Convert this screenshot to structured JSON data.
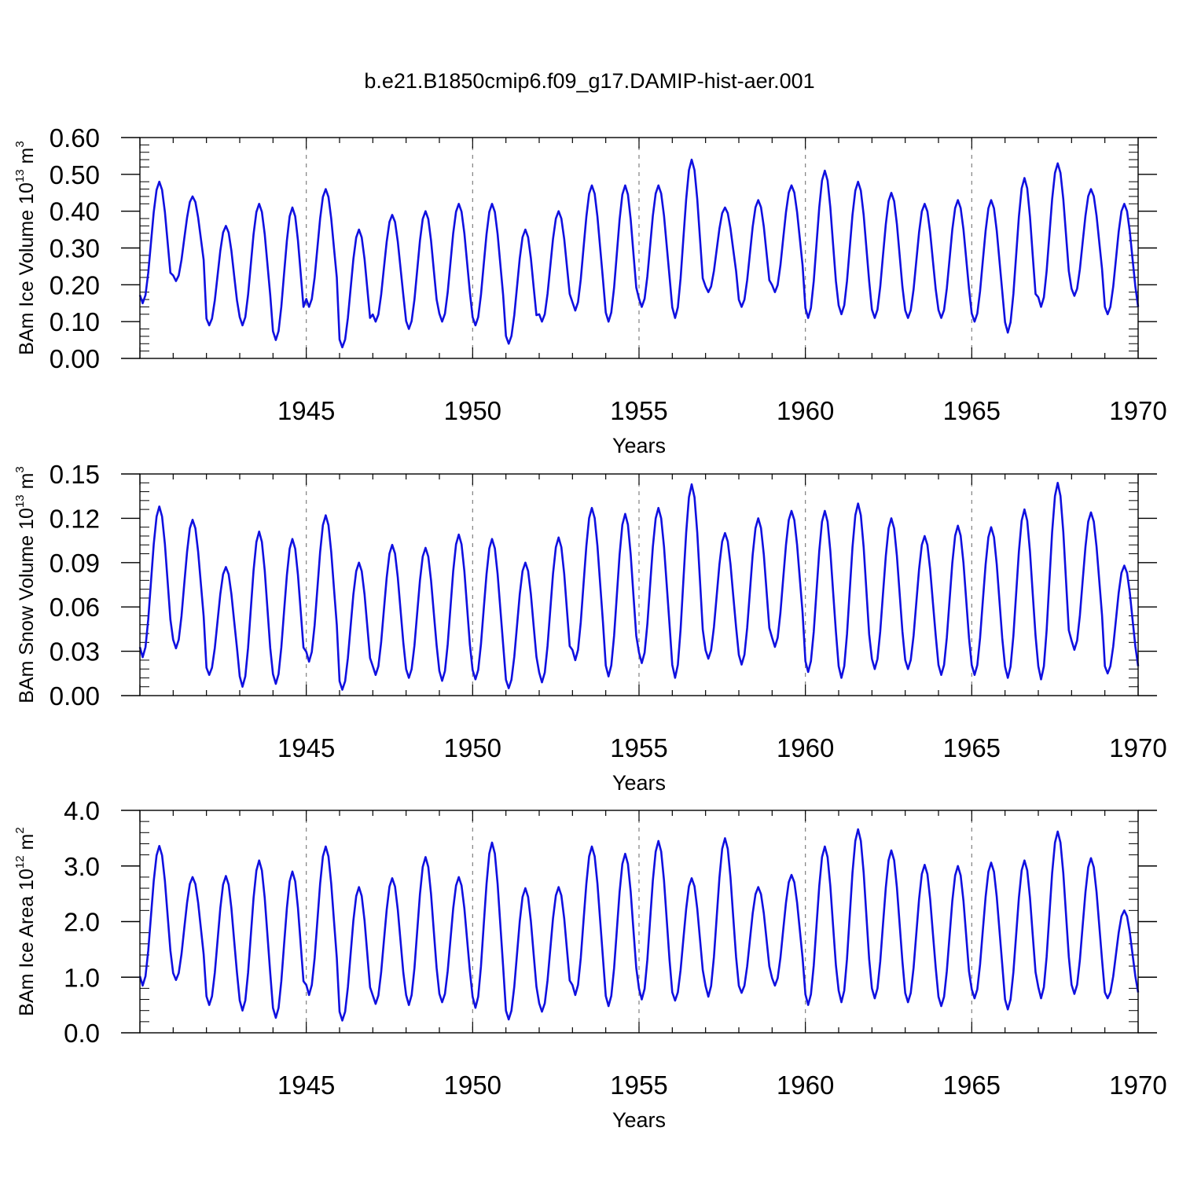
{
  "figure_title": "b.e21.B1850cmip6.f09_g17.DAMIP-hist-aer.001",
  "colors": {
    "series": "#1010e0",
    "axes": "#000000",
    "grid": "#808080"
  },
  "chart_data": [
    {
      "type": "line",
      "id": "ice-volume",
      "title": "b.e21.B1850cmip6.f09_g17.DAMIP-hist-aer.001",
      "xlabel": "Years",
      "ylabel": {
        "main": "BAm Ice Volume 10",
        "sup": "13",
        "unit": " m",
        "unit_sup": "3"
      },
      "xlim": [
        1940,
        1970
      ],
      "ylim": [
        0,
        0.6
      ],
      "xticks": [
        "1945",
        "1950",
        "1955",
        "1960",
        "1965",
        "1970"
      ],
      "yticks": [
        "0.00",
        "0.10",
        "0.20",
        "0.30",
        "0.40",
        "0.50",
        "0.60"
      ],
      "grid_x": [
        1945,
        1950,
        1955,
        1960,
        1965
      ],
      "series": [
        {
          "name": "BAm Ice Volume",
          "annual_min": [
            0.15,
            0.21,
            0.09,
            0.09,
            0.05,
            0.14,
            0.03,
            0.1,
            0.08,
            0.1,
            0.09,
            0.04,
            0.1,
            0.13,
            0.1,
            0.14,
            0.11,
            0.18,
            0.14,
            0.18,
            0.11,
            0.12,
            0.11,
            0.11,
            0.11,
            0.1,
            0.07,
            0.14,
            0.17,
            0.12
          ],
          "annual_max": [
            0.48,
            0.44,
            0.36,
            0.42,
            0.41,
            0.46,
            0.35,
            0.39,
            0.4,
            0.42,
            0.42,
            0.35,
            0.4,
            0.47,
            0.47,
            0.47,
            0.54,
            0.41,
            0.43,
            0.47,
            0.51,
            0.48,
            0.45,
            0.42,
            0.43,
            0.43,
            0.49,
            0.53,
            0.46,
            0.42
          ]
        }
      ]
    },
    {
      "type": "line",
      "id": "snow-volume",
      "title": "",
      "xlabel": "Years",
      "ylabel": {
        "main": "BAm Snow Volume 10",
        "sup": "13",
        "unit": " m",
        "unit_sup": "3"
      },
      "xlim": [
        1940,
        1970
      ],
      "ylim": [
        0,
        0.15
      ],
      "xticks": [
        "1945",
        "1950",
        "1955",
        "1960",
        "1965",
        "1970"
      ],
      "yticks": [
        "0.00",
        "0.03",
        "0.06",
        "0.09",
        "0.12",
        "0.15"
      ],
      "grid_x": [
        1945,
        1950,
        1955,
        1960,
        1965
      ],
      "series": [
        {
          "name": "BAm Snow Volume",
          "annual_min": [
            0.026,
            0.032,
            0.014,
            0.006,
            0.008,
            0.023,
            0.004,
            0.014,
            0.012,
            0.01,
            0.011,
            0.005,
            0.009,
            0.024,
            0.013,
            0.022,
            0.012,
            0.025,
            0.021,
            0.033,
            0.016,
            0.012,
            0.018,
            0.018,
            0.014,
            0.014,
            0.012,
            0.011,
            0.031,
            0.015
          ],
          "annual_max": [
            0.128,
            0.119,
            0.087,
            0.111,
            0.106,
            0.122,
            0.09,
            0.102,
            0.1,
            0.109,
            0.106,
            0.09,
            0.107,
            0.127,
            0.123,
            0.127,
            0.143,
            0.11,
            0.12,
            0.125,
            0.125,
            0.13,
            0.12,
            0.108,
            0.115,
            0.114,
            0.126,
            0.144,
            0.124,
            0.088
          ]
        }
      ]
    },
    {
      "type": "line",
      "id": "ice-area",
      "title": "",
      "xlabel": "Years",
      "ylabel": {
        "main": "BAm Ice Area 10",
        "sup": "12",
        "unit": " m",
        "unit_sup": "2"
      },
      "xlim": [
        1940,
        1970
      ],
      "ylim": [
        0,
        4
      ],
      "xticks": [
        "1945",
        "1950",
        "1955",
        "1960",
        "1965",
        "1970"
      ],
      "yticks": [
        "0.0",
        "1.0",
        "2.0",
        "3.0",
        "4.0"
      ],
      "grid_x": [
        1945,
        1950,
        1955,
        1960,
        1965
      ],
      "series": [
        {
          "name": "BAm Ice Area",
          "annual_min": [
            0.85,
            0.95,
            0.5,
            0.4,
            0.27,
            0.68,
            0.22,
            0.52,
            0.5,
            0.55,
            0.45,
            0.24,
            0.38,
            0.68,
            0.48,
            0.6,
            0.58,
            0.65,
            0.72,
            0.85,
            0.5,
            0.55,
            0.62,
            0.55,
            0.48,
            0.62,
            0.42,
            0.62,
            0.7,
            0.62
          ],
          "annual_max": [
            3.36,
            2.8,
            2.82,
            3.1,
            2.9,
            3.35,
            2.62,
            2.78,
            3.16,
            2.8,
            3.42,
            2.6,
            2.62,
            3.35,
            3.22,
            3.45,
            2.78,
            3.5,
            2.62,
            2.84,
            3.35,
            3.66,
            3.28,
            3.02,
            3.0,
            3.06,
            3.1,
            3.62,
            3.14,
            2.2
          ]
        }
      ]
    }
  ]
}
